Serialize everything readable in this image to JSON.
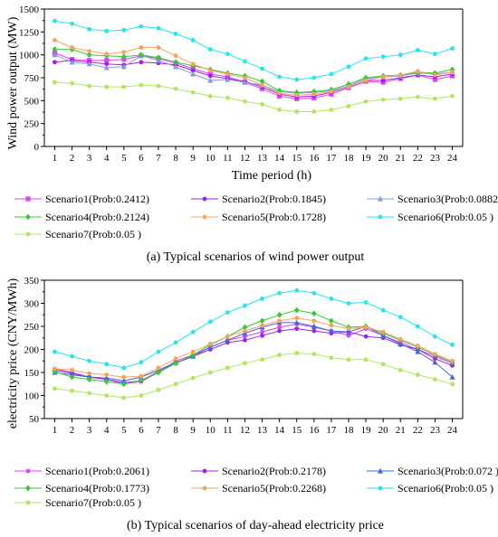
{
  "chart_data": [
    {
      "type": "line",
      "caption": "(a) Typical scenarios of wind power output",
      "xlabel": "Time period (h)",
      "ylabel": "Wind power output (MW)",
      "x": [
        1,
        2,
        3,
        4,
        5,
        6,
        7,
        8,
        9,
        10,
        11,
        12,
        13,
        14,
        15,
        16,
        17,
        18,
        19,
        20,
        21,
        22,
        23,
        24
      ],
      "ylim": [
        0,
        1500
      ],
      "yticks": [
        0,
        250,
        500,
        750,
        1000,
        1250,
        1500
      ],
      "grid": false,
      "legend_position": "bottom",
      "series": [
        {
          "name": "Scenario1(Prob:0.2412)",
          "color": "#e040fb",
          "marker": "square",
          "values": [
            1020,
            950,
            940,
            940,
            950,
            990,
            960,
            910,
            850,
            790,
            760,
            700,
            630,
            550,
            520,
            530,
            570,
            640,
            710,
            700,
            740,
            780,
            730,
            770
          ]
        },
        {
          "name": "Scenario2(Prob:0.1845)",
          "color": "#a020f0",
          "marker": "circle",
          "values": [
            920,
            940,
            920,
            900,
            890,
            920,
            910,
            890,
            830,
            770,
            740,
            710,
            650,
            570,
            540,
            550,
            590,
            650,
            720,
            720,
            750,
            780,
            760,
            790
          ]
        },
        {
          "name": "Scenario3(Prob:0.0882)",
          "color": "#8c96e0",
          "marker": "triangle",
          "values": [
            1000,
            920,
            900,
            860,
            870,
            990,
            940,
            870,
            790,
            720,
            730,
            700,
            670,
            600,
            580,
            590,
            610,
            660,
            740,
            760,
            770,
            800,
            790,
            810
          ]
        },
        {
          "name": "Scenario4(Prob:0.2124)",
          "color": "#33cc33",
          "marker": "diamond",
          "values": [
            1060,
            1060,
            1000,
            990,
            980,
            1000,
            970,
            920,
            880,
            840,
            800,
            770,
            710,
            610,
            590,
            600,
            620,
            680,
            750,
            770,
            780,
            810,
            800,
            840
          ]
        },
        {
          "name": "Scenario5(Prob:0.1728)",
          "color": "#f4a460",
          "marker": "circle",
          "values": [
            1160,
            1080,
            1040,
            1010,
            1030,
            1080,
            1080,
            990,
            900,
            830,
            790,
            750,
            670,
            580,
            560,
            570,
            600,
            650,
            720,
            760,
            780,
            820,
            780,
            810
          ]
        },
        {
          "name": "Scenario6(Prob:0.05  )",
          "color": "#22e6f0",
          "marker": "circle",
          "values": [
            1370,
            1340,
            1280,
            1260,
            1270,
            1310,
            1290,
            1230,
            1160,
            1060,
            1010,
            930,
            850,
            760,
            730,
            750,
            790,
            870,
            960,
            980,
            1000,
            1050,
            1010,
            1070
          ]
        },
        {
          "name": "Scenario7(Prob:0.05  )",
          "color": "#b3e65c",
          "marker": "circle",
          "values": [
            700,
            690,
            660,
            650,
            650,
            670,
            660,
            630,
            590,
            550,
            530,
            490,
            460,
            400,
            380,
            380,
            400,
            440,
            490,
            510,
            520,
            540,
            520,
            550
          ]
        }
      ]
    },
    {
      "type": "line",
      "caption": "(b) Typical scenarios of day-ahead electricity price",
      "xlabel": "",
      "ylabel": "electricity price (CNY/MWh)",
      "x": [
        1,
        2,
        3,
        4,
        5,
        6,
        7,
        8,
        9,
        10,
        11,
        12,
        13,
        14,
        15,
        16,
        17,
        18,
        19,
        20,
        21,
        22,
        23,
        24
      ],
      "ylim": [
        50,
        350
      ],
      "yticks": [
        50,
        100,
        150,
        200,
        250,
        300,
        350
      ],
      "grid": false,
      "legend_position": "bottom",
      "series": [
        {
          "name": "Scenario1(Prob:0.2061)",
          "color": "#e040fb",
          "marker": "circle",
          "values": [
            158,
            150,
            140,
            135,
            125,
            130,
            150,
            175,
            188,
            205,
            220,
            228,
            238,
            248,
            255,
            248,
            240,
            230,
            245,
            230,
            215,
            200,
            185,
            170
          ]
        },
        {
          "name": "Scenario2(Prob:0.2178)",
          "color": "#a020f0",
          "marker": "circle",
          "values": [
            155,
            148,
            140,
            135,
            128,
            132,
            152,
            170,
            185,
            200,
            215,
            220,
            230,
            240,
            245,
            240,
            235,
            238,
            228,
            225,
            210,
            200,
            180,
            165
          ]
        },
        {
          "name": "Scenario3(Prob:0.072 )",
          "color": "#4466dd",
          "marker": "triangle",
          "values": [
            150,
            145,
            140,
            138,
            132,
            140,
            155,
            172,
            185,
            205,
            220,
            235,
            248,
            258,
            258,
            250,
            240,
            238,
            250,
            230,
            212,
            195,
            172,
            140
          ]
        },
        {
          "name": "Scenario4(Prob:0.1773)",
          "color": "#33cc33",
          "marker": "diamond",
          "values": [
            152,
            140,
            135,
            130,
            125,
            133,
            150,
            170,
            188,
            210,
            228,
            248,
            262,
            275,
            285,
            278,
            262,
            248,
            250,
            235,
            220,
            205,
            188,
            172
          ]
        },
        {
          "name": "Scenario5(Prob:0.2268)",
          "color": "#f4a460",
          "marker": "circle",
          "values": [
            158,
            155,
            148,
            145,
            140,
            142,
            160,
            180,
            195,
            212,
            228,
            240,
            252,
            262,
            268,
            262,
            252,
            245,
            248,
            238,
            222,
            208,
            190,
            175
          ]
        },
        {
          "name": "Scenario6(Prob:0.05  )",
          "color": "#22e6f0",
          "marker": "circle",
          "values": [
            195,
            185,
            175,
            168,
            160,
            172,
            195,
            215,
            238,
            260,
            280,
            295,
            310,
            322,
            328,
            322,
            310,
            300,
            302,
            285,
            270,
            250,
            228,
            210
          ]
        },
        {
          "name": "Scenario7(Prob:0.05  )",
          "color": "#b3e65c",
          "marker": "circle",
          "values": [
            115,
            110,
            105,
            100,
            95,
            100,
            112,
            125,
            138,
            150,
            160,
            170,
            178,
            188,
            192,
            190,
            182,
            178,
            178,
            168,
            155,
            145,
            135,
            125
          ]
        }
      ]
    }
  ]
}
